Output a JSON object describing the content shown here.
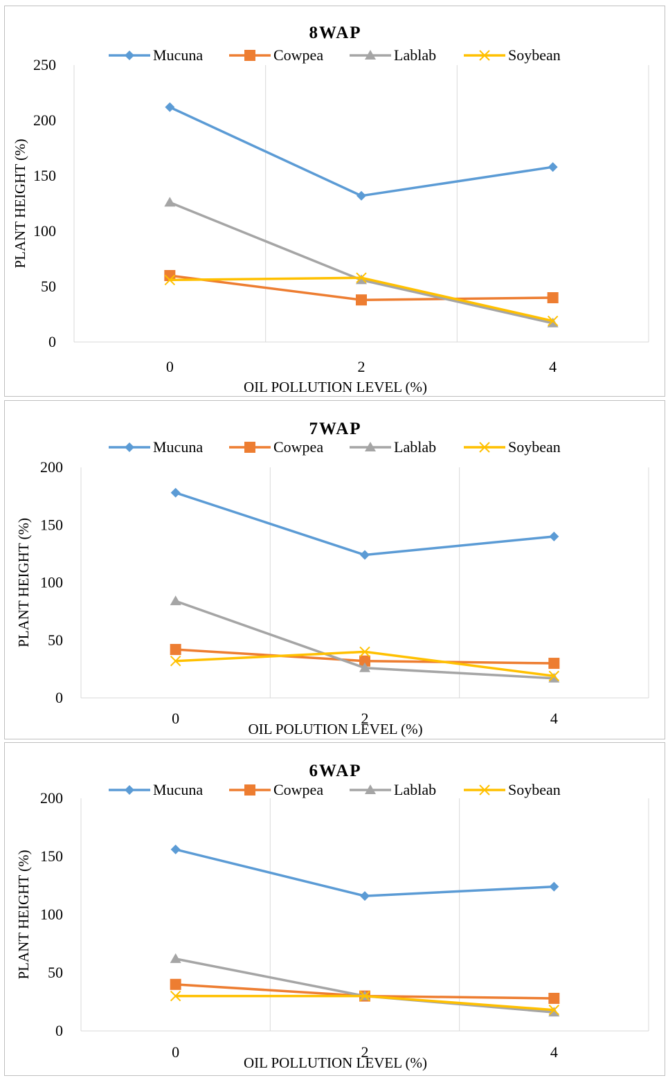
{
  "chart_data": [
    {
      "type": "line",
      "title": "8WAP",
      "xlabel": "OIL POLLUTION LEVEL (%)",
      "ylabel": "PLANT HEIGHT (%)",
      "categories": [
        "0",
        "2",
        "4"
      ],
      "ylim": [
        0,
        250
      ],
      "yticks": [
        "0",
        "50",
        "100",
        "150",
        "200",
        "250"
      ],
      "grid": "vertical",
      "legend": "top",
      "series": [
        {
          "name": "Mucuna",
          "values": [
            212,
            132,
            158
          ],
          "color": "#5b9bd5",
          "marker": "diamond"
        },
        {
          "name": "Cowpea",
          "values": [
            60,
            38,
            40
          ],
          "color": "#ed7d31",
          "marker": "square"
        },
        {
          "name": "Lablab",
          "values": [
            126,
            56,
            17
          ],
          "color": "#a5a5a5",
          "marker": "triangle"
        },
        {
          "name": "Soybean",
          "values": [
            56,
            58,
            19
          ],
          "color": "#ffc000",
          "marker": "x"
        }
      ]
    },
    {
      "type": "line",
      "title": "7WAP",
      "xlabel": "OIL POLUTION LEVEL (%)",
      "ylabel": "PLANT HEIGHT (%)",
      "categories": [
        "0",
        "2",
        "4"
      ],
      "ylim": [
        0,
        200
      ],
      "yticks": [
        "0",
        "50",
        "100",
        "150",
        "200"
      ],
      "grid": "vertical",
      "legend": "top",
      "series": [
        {
          "name": "Mucuna",
          "values": [
            178,
            124,
            140
          ],
          "color": "#5b9bd5",
          "marker": "diamond"
        },
        {
          "name": "Cowpea",
          "values": [
            42,
            32,
            30
          ],
          "color": "#ed7d31",
          "marker": "square"
        },
        {
          "name": "Lablab",
          "values": [
            84,
            26,
            17
          ],
          "color": "#a5a5a5",
          "marker": "triangle"
        },
        {
          "name": "Soybean",
          "values": [
            32,
            40,
            19
          ],
          "color": "#ffc000",
          "marker": "x"
        }
      ]
    },
    {
      "type": "line",
      "title": "6WAP",
      "xlabel": "OIL POLLUTION LEVEL (%)",
      "ylabel": "PLANT HEIGHT (%)",
      "categories": [
        "0",
        "2",
        "4"
      ],
      "ylim": [
        0,
        200
      ],
      "yticks": [
        "0",
        "50",
        "100",
        "150",
        "200"
      ],
      "grid": "vertical",
      "legend": "top",
      "series": [
        {
          "name": "Mucuna",
          "values": [
            156,
            116,
            124
          ],
          "color": "#5b9bd5",
          "marker": "diamond"
        },
        {
          "name": "Cowpea",
          "values": [
            40,
            30,
            28
          ],
          "color": "#ed7d31",
          "marker": "square"
        },
        {
          "name": "Lablab",
          "values": [
            62,
            30,
            16
          ],
          "color": "#a5a5a5",
          "marker": "triangle"
        },
        {
          "name": "Soybean",
          "values": [
            30,
            30,
            18
          ],
          "color": "#ffc000",
          "marker": "x"
        }
      ]
    }
  ]
}
